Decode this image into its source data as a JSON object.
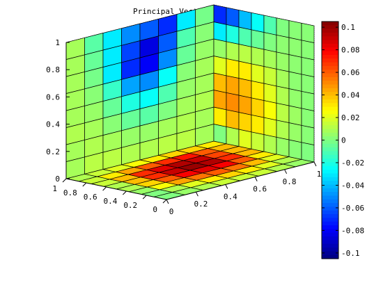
{
  "chart_data": {
    "type": "heatmap",
    "title": "Principal Vector V",
    "title_subscript": "4",
    "xlabel": "",
    "ylabel": "",
    "zlabel": "",
    "grid": true,
    "grid_size": 8,
    "x_ticks": [
      "0",
      "0.2",
      "0.4",
      "0.6",
      "0.8",
      "1"
    ],
    "y_ticks": [
      "0",
      "0.2",
      "0.4",
      "0.6",
      "0.8",
      "1"
    ],
    "z_ticks": [
      "0",
      "0.2",
      "0.4",
      "0.6",
      "0.8",
      "1"
    ],
    "xlim": [
      0,
      1
    ],
    "ylim": [
      0,
      1
    ],
    "zlim": [
      0,
      1
    ],
    "colorbar": {
      "clim": [
        -0.105,
        0.105
      ],
      "colormap": "jet",
      "ticks": [
        "0.1",
        "0.08",
        "0.06",
        "0.04",
        "0.02",
        "0",
        "-0.02",
        "-0.04",
        "-0.06",
        "-0.08",
        "-0.1"
      ],
      "tick_values": [
        0.1,
        0.08,
        0.06,
        0.04,
        0.02,
        0,
        -0.02,
        -0.04,
        -0.06,
        -0.08,
        -0.1
      ]
    },
    "slices": {
      "floor_z0": {
        "description": "rows indexed by y from 1 (back) to 0 (front), columns x from 0 to 1",
        "values": [
          [
            0.01,
            0.015,
            0.02,
            0.025,
            0.03,
            0.035,
            0.035,
            0.03
          ],
          [
            0.015,
            0.03,
            0.045,
            0.06,
            0.07,
            0.075,
            0.06,
            0.04
          ],
          [
            0.015,
            0.04,
            0.07,
            0.085,
            0.095,
            0.09,
            0.065,
            0.04
          ],
          [
            0.01,
            0.04,
            0.07,
            0.09,
            0.1,
            0.095,
            0.07,
            0.04
          ],
          [
            0.01,
            0.035,
            0.06,
            0.08,
            0.085,
            0.08,
            0.06,
            0.03
          ],
          [
            0.005,
            0.025,
            0.045,
            0.055,
            0.06,
            0.055,
            0.04,
            0.02
          ],
          [
            0.0,
            0.01,
            0.02,
            0.03,
            0.035,
            0.03,
            0.02,
            0.01
          ],
          [
            0.0,
            0.005,
            0.01,
            0.015,
            0.015,
            0.015,
            0.01,
            0.005
          ]
        ]
      },
      "back_wall_y1": {
        "description": "rows indexed by z from 0 (bottom) to 1 (top), columns x from 0 to 1",
        "values": [
          [
            0.008,
            0.012,
            0.012,
            0.01,
            0.01,
            0.012,
            0.012,
            0.008
          ],
          [
            0.008,
            0.01,
            0.008,
            0.005,
            0.005,
            0.008,
            0.01,
            0.008
          ],
          [
            0.01,
            0.008,
            0.002,
            -0.005,
            -0.008,
            0.0,
            0.008,
            0.01
          ],
          [
            0.008,
            0.005,
            -0.005,
            -0.02,
            -0.025,
            -0.01,
            0.005,
            0.008
          ],
          [
            0.008,
            0.002,
            -0.015,
            -0.045,
            -0.05,
            -0.025,
            0.002,
            0.008
          ],
          [
            0.008,
            -0.002,
            -0.03,
            -0.07,
            -0.08,
            -0.05,
            -0.005,
            0.005
          ],
          [
            0.008,
            -0.005,
            -0.03,
            -0.065,
            -0.085,
            -0.06,
            -0.01,
            0.002
          ],
          [
            0.008,
            -0.008,
            -0.03,
            -0.05,
            -0.06,
            -0.07,
            -0.03,
            -0.002
          ]
        ]
      },
      "side_wall_x1": {
        "description": "rows indexed by z from 0 (bottom) to 1 (top), columns y from 1 (back) to 0 (front)",
        "values": [
          [
            0.0,
            0.01,
            0.02,
            0.015,
            0.01,
            0.005,
            0.002,
            0.0
          ],
          [
            0.03,
            0.04,
            0.035,
            0.03,
            0.02,
            0.01,
            0.005,
            0.002
          ],
          [
            0.045,
            0.05,
            0.045,
            0.035,
            0.025,
            0.012,
            0.006,
            0.002
          ],
          [
            0.04,
            0.045,
            0.04,
            0.03,
            0.02,
            0.01,
            0.004,
            0.002
          ],
          [
            0.02,
            0.03,
            0.03,
            0.02,
            0.015,
            0.008,
            0.003,
            0.002
          ],
          [
            0.005,
            0.01,
            0.012,
            0.01,
            0.008,
            0.005,
            0.003,
            0.002
          ],
          [
            -0.03,
            -0.02,
            -0.01,
            -0.005,
            0.0,
            0.003,
            0.003,
            0.002
          ],
          [
            -0.07,
            -0.06,
            -0.04,
            -0.025,
            -0.01,
            0.0,
            0.002,
            0.002
          ]
        ]
      }
    }
  }
}
